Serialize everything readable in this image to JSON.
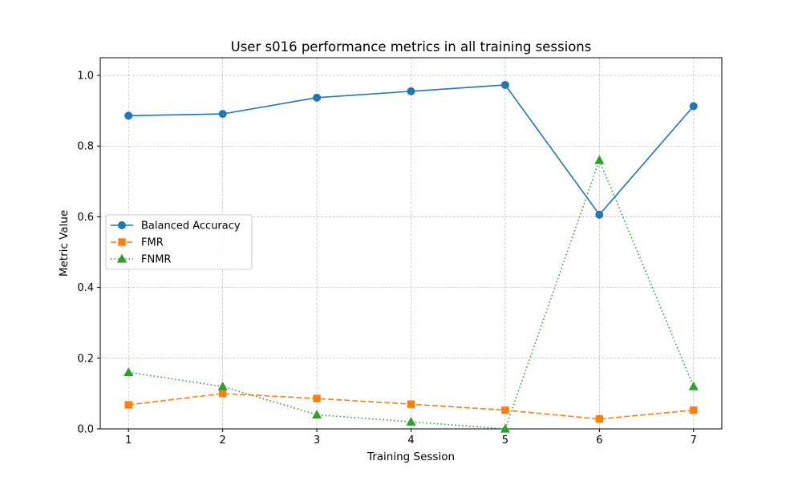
{
  "chart_data": {
    "type": "line",
    "title": "User s016 performance metrics in all training sessions",
    "xlabel": "Training Session",
    "ylabel": "Metric Value",
    "x": [
      1,
      2,
      3,
      4,
      5,
      6,
      7
    ],
    "xlim": [
      0.7,
      7.3
    ],
    "ylim": [
      0.0,
      1.05
    ],
    "xticks": [
      "1",
      "2",
      "3",
      "4",
      "5",
      "6",
      "7"
    ],
    "yticks": [
      "0.0",
      "0.2",
      "0.4",
      "0.6",
      "0.8",
      "1.0"
    ],
    "grid": true,
    "legend_position": "center-left",
    "series": [
      {
        "name": "Balanced Accuracy",
        "values": [
          0.886,
          0.891,
          0.937,
          0.955,
          0.973,
          0.606,
          0.913
        ],
        "color": "#1f77b4",
        "marker": "circle",
        "linestyle": "solid"
      },
      {
        "name": "FMR",
        "values": [
          0.068,
          0.1,
          0.086,
          0.07,
          0.053,
          0.028,
          0.053
        ],
        "color": "#ff7f0e",
        "marker": "square",
        "linestyle": "dashed"
      },
      {
        "name": "FNMR",
        "values": [
          0.16,
          0.12,
          0.04,
          0.02,
          0.0,
          0.76,
          0.12
        ],
        "color": "#2ca02c",
        "marker": "triangle",
        "linestyle": "dotted"
      }
    ]
  }
}
